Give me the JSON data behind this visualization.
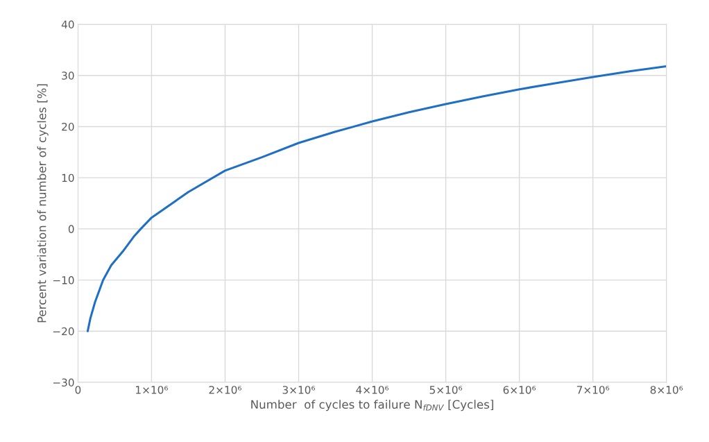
{
  "chart_data": {
    "type": "line",
    "xlabel": "Number  of cycles to failure N$_{fDNV}$ [Cycles]",
    "ylabel": "Percent variation of number of cycles [%]",
    "series": [
      {
        "color": "#1f6fc5",
        "x": [
          132000,
          168000,
          232000,
          342000,
          452000,
          610000,
          765000,
          853000,
          1000000,
          1500000,
          2000000,
          2500000,
          3000000,
          3500000,
          4000000,
          4500000,
          5000000,
          5500000,
          6000000,
          6500000,
          7000000,
          7500000,
          8000000
        ],
        "values": [
          -20,
          -17.5,
          -14.3,
          -10,
          -7.1,
          -4.4,
          -1.4,
          0,
          2.2,
          7.2,
          11.4,
          14,
          16.8,
          19,
          21,
          22.8,
          24.4,
          25.9,
          27.3,
          28.5,
          29.7,
          30.8,
          31.8
        ]
      }
    ],
    "xlim": [
      0,
      8000000
    ],
    "xticks": [
      0,
      {
        "value": 1000000,
        "label": "1×10⁶"
      },
      {
        "value": 2000000,
        "label": "2×10⁶"
      },
      {
        "value": 3000000,
        "label": "3×10⁶"
      },
      {
        "value": 4000000,
        "label": "4×10⁶"
      },
      {
        "value": 5000000,
        "label": "5×10⁶"
      },
      {
        "value": 6000000,
        "label": "6×10⁶"
      },
      {
        "value": 7000000,
        "label": "7×10⁶"
      },
      {
        "value": 8000000,
        "label": "8×10⁶"
      }
    ],
    "ylim": [
      -30,
      40
    ],
    "yticks": [
      {
        "value": -30,
        "label": "−30"
      },
      {
        "value": -20,
        "label": "−20"
      },
      {
        "value": -10,
        "label": "−10"
      },
      0,
      10,
      20,
      30,
      40
    ],
    "grid": true,
    "marker": "none",
    "line_style": "solid"
  }
}
